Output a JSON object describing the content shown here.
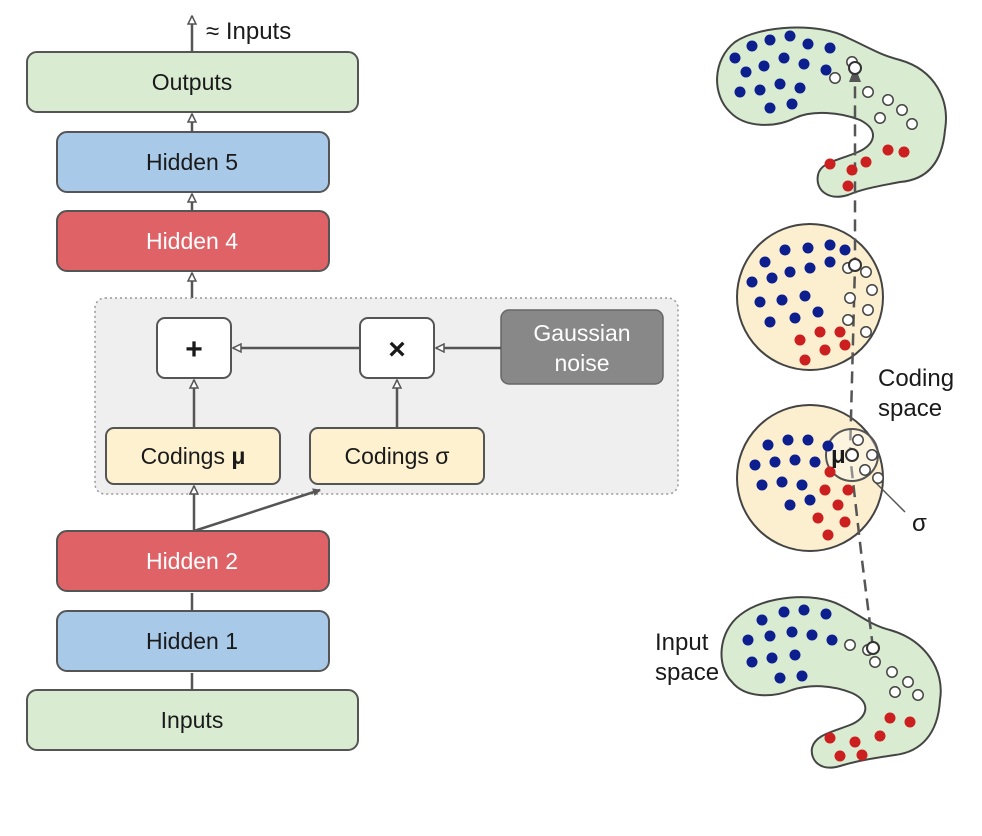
{
  "top_output_label": "≈ Inputs",
  "layers": {
    "outputs": "Outputs",
    "hidden5": "Hidden 5",
    "hidden4": "Hidden 4",
    "hidden2": "Hidden 2",
    "hidden1": "Hidden 1",
    "inputs": "Inputs"
  },
  "sampling_block": {
    "plus_symbol": "+",
    "times_symbol": "×",
    "noise_line1": "Gaussian",
    "noise_line2": "noise",
    "codings_mu_text": "Codings ",
    "codings_mu_symbol": "μ",
    "codings_sigma": "Codings σ"
  },
  "right_panel": {
    "coding_space_line1": "Coding",
    "coding_space_line2": "space",
    "input_space_line1": "Input",
    "input_space_line2": "space",
    "mu_symbol": "μ",
    "sigma_symbol": "σ"
  },
  "colors": {
    "green_layer": "#d9ecd2",
    "blue_layer": "#a9c9e8",
    "red_layer": "#de6266",
    "codings_fill": "#fdf1cf",
    "noise_fill": "#888888",
    "block_background": "#efefef",
    "blue_dot": "#0d1f8f",
    "red_dot": "#cc1f1f",
    "coding_space_fill": "#fcefcf"
  }
}
